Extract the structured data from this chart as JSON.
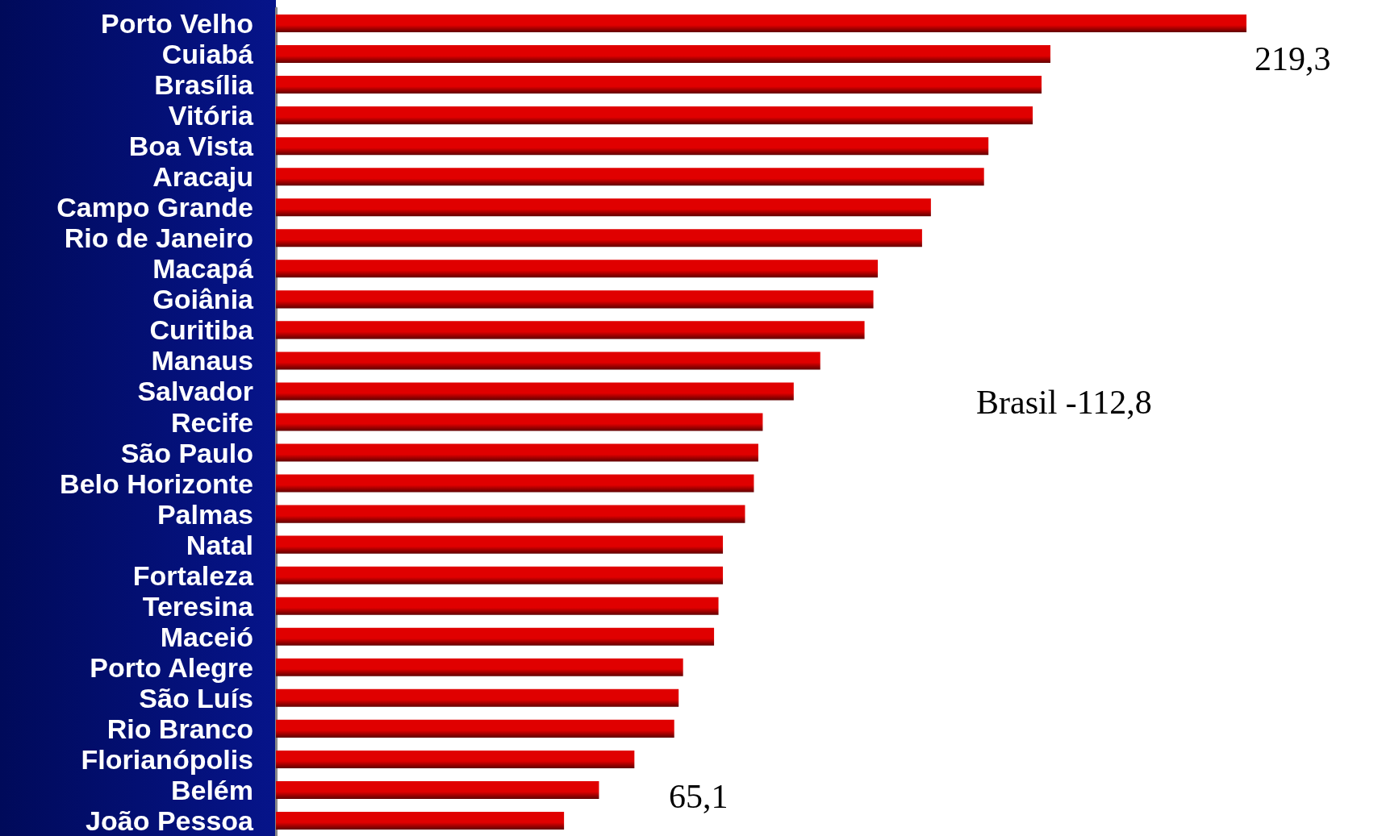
{
  "chart_data": {
    "type": "bar",
    "orientation": "horizontal",
    "categories": [
      "Porto Velho",
      "Cuiabá",
      "Brasília",
      "Vitória",
      "Boa Vista",
      "Aracaju",
      "Campo Grande",
      "Rio de Janeiro",
      "Macapá",
      "Goiânia",
      "Curitiba",
      "Manaus",
      "Salvador",
      "Recife",
      "São Paulo",
      "Belo Horizonte",
      "Palmas",
      "Natal",
      "Fortaleza",
      "Teresina",
      "Maceió",
      "Porto Alegre",
      "São Luís",
      "Rio Branco",
      "Florianópolis",
      "Belém",
      "João Pessoa"
    ],
    "values": [
      219.3,
      175,
      173,
      171,
      161,
      160,
      148,
      146,
      136,
      135,
      133,
      123,
      117,
      110,
      109,
      108,
      106,
      101,
      101,
      100,
      99,
      92,
      91,
      90,
      81,
      73,
      65.1
    ],
    "value_labels": [
      "219,3",
      null,
      null,
      null,
      null,
      null,
      null,
      null,
      null,
      null,
      null,
      null,
      null,
      null,
      null,
      null,
      null,
      null,
      null,
      null,
      null,
      null,
      null,
      null,
      null,
      null,
      "65,1"
    ],
    "color": "#e00000",
    "annotations": [
      "Brasil -112,8"
    ]
  }
}
